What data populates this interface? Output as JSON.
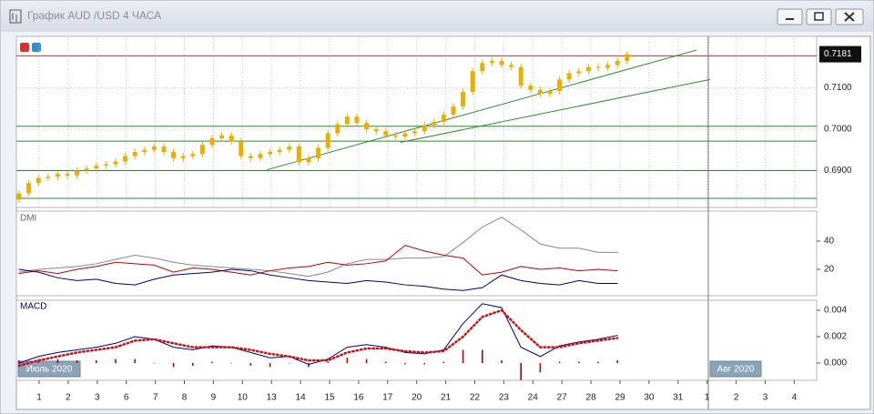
{
  "window": {
    "title": "График AUD /USD  4 ЧАСА"
  },
  "price_panel": {
    "type": "candlestick",
    "color": "#e8b000",
    "open": [
      0.683,
      0.6845,
      0.687,
      0.6882,
      0.6885,
      0.6892,
      0.6888,
      0.69,
      0.6905,
      0.6912,
      0.6915,
      0.6922,
      0.6935,
      0.6945,
      0.695,
      0.6958,
      0.6945,
      0.693,
      0.6935,
      0.694,
      0.6962,
      0.6978,
      0.6985,
      0.697,
      0.6935,
      0.693,
      0.694,
      0.6945,
      0.695,
      0.6958,
      0.692,
      0.693,
      0.6955,
      0.699,
      0.7012,
      0.703,
      0.7015,
      0.7,
      0.6995,
      0.6985,
      0.6982,
      0.699,
      0.6995,
      0.701,
      0.7018,
      0.7035,
      0.7055,
      0.709,
      0.714,
      0.716,
      0.7165,
      0.7155,
      0.715,
      0.7105,
      0.7095,
      0.7085,
      0.7092,
      0.712,
      0.7135,
      0.714,
      0.715,
      0.7148,
      0.7155,
      0.7165
    ],
    "high": [
      0.6853,
      0.6878,
      0.689,
      0.6893,
      0.69,
      0.69,
      0.6908,
      0.6913,
      0.692,
      0.6923,
      0.693,
      0.6943,
      0.6953,
      0.6958,
      0.6966,
      0.6966,
      0.6953,
      0.6943,
      0.6948,
      0.697,
      0.6986,
      0.6993,
      0.6993,
      0.6978,
      0.6943,
      0.6948,
      0.6953,
      0.6958,
      0.6966,
      0.6966,
      0.6938,
      0.6963,
      0.6998,
      0.702,
      0.7038,
      0.7038,
      0.7023,
      0.7008,
      0.7003,
      0.6993,
      0.6998,
      0.7003,
      0.7018,
      0.7026,
      0.7043,
      0.7063,
      0.7098,
      0.7148,
      0.7168,
      0.7173,
      0.7173,
      0.7163,
      0.7158,
      0.7113,
      0.7103,
      0.71,
      0.7128,
      0.7143,
      0.7148,
      0.7158,
      0.7158,
      0.7163,
      0.7173,
      0.7189
    ],
    "low": [
      0.6822,
      0.6837,
      0.6862,
      0.6874,
      0.6877,
      0.688,
      0.688,
      0.6892,
      0.6897,
      0.6904,
      0.6907,
      0.6914,
      0.6927,
      0.6937,
      0.6942,
      0.6937,
      0.6922,
      0.6922,
      0.6927,
      0.6932,
      0.6954,
      0.697,
      0.6962,
      0.6927,
      0.6922,
      0.6922,
      0.6932,
      0.6937,
      0.6942,
      0.6912,
      0.6912,
      0.6922,
      0.6947,
      0.6982,
      0.7004,
      0.7007,
      0.6992,
      0.6987,
      0.6977,
      0.6974,
      0.6974,
      0.6982,
      0.6987,
      0.7002,
      0.701,
      0.7027,
      0.7047,
      0.7082,
      0.7132,
      0.7152,
      0.7147,
      0.7142,
      0.7097,
      0.7087,
      0.7077,
      0.7077,
      0.7084,
      0.7112,
      0.7127,
      0.7132,
      0.714,
      0.714,
      0.7147,
      0.7157
    ],
    "close": [
      0.6845,
      0.687,
      0.6882,
      0.6885,
      0.6892,
      0.6888,
      0.69,
      0.6905,
      0.6912,
      0.6915,
      0.6922,
      0.6935,
      0.6945,
      0.695,
      0.6958,
      0.6945,
      0.693,
      0.6935,
      0.694,
      0.6962,
      0.6978,
      0.6985,
      0.697,
      0.6935,
      0.693,
      0.694,
      0.6945,
      0.695,
      0.6958,
      0.692,
      0.693,
      0.6955,
      0.699,
      0.7012,
      0.703,
      0.7015,
      0.7,
      0.6995,
      0.6985,
      0.6982,
      0.699,
      0.6995,
      0.701,
      0.7018,
      0.7035,
      0.7055,
      0.709,
      0.714,
      0.716,
      0.7165,
      0.7155,
      0.715,
      0.7105,
      0.7095,
      0.7085,
      0.7092,
      0.712,
      0.7135,
      0.714,
      0.715,
      0.7148,
      0.7155,
      0.7165,
      0.7181
    ],
    "ylim": [
      0.6811,
      0.7224
    ],
    "yticks": [
      {
        "value": 0.69,
        "label": "0.6900"
      },
      {
        "value": 0.7,
        "label": "0.7000"
      },
      {
        "value": 0.71,
        "label": "0.7100"
      }
    ],
    "last_price": 0.7181,
    "levels": [
      {
        "value": 0.7177,
        "color": "#c0392b"
      },
      {
        "value": 0.7007,
        "color": "#2e8b2e"
      },
      {
        "value": 0.6971,
        "color": "#2e8b2e"
      },
      {
        "value": 0.69,
        "color": "#2e8b2e"
      },
      {
        "value": 0.6833,
        "color": "#2e8b2e"
      }
    ],
    "trendlines": [
      {
        "x": [
          25.7,
          70.2
        ],
        "y": [
          0.6902,
          0.7191
        ],
        "color": "#2e8b2e"
      },
      {
        "x": [
          39.5,
          71.6
        ],
        "y": [
          0.6968,
          0.712
        ],
        "color": "#2e8b2e"
      }
    ]
  },
  "dmi_panel": {
    "type": "line",
    "label": "DMI",
    "ylim": [
      1.3,
      61.3
    ],
    "yticks": [
      20,
      40
    ],
    "series": [
      {
        "color": "#888888",
        "values": [
          18,
          20,
          21,
          22,
          24,
          27,
          30,
          28,
          25,
          23,
          22,
          21,
          20,
          19,
          17,
          15,
          18,
          24,
          27,
          27,
          28,
          28,
          29,
          39,
          50,
          57,
          48,
          38,
          35,
          35,
          32,
          32
        ]
      },
      {
        "color": "#c00000",
        "values": [
          17,
          19,
          17,
          20,
          22,
          25,
          24,
          23,
          18,
          21,
          20,
          18,
          16,
          19,
          21,
          22,
          25,
          23,
          24,
          26,
          37,
          33,
          30,
          28,
          16,
          18,
          22,
          20,
          21,
          19,
          20,
          19
        ]
      },
      {
        "color": "#00007a",
        "values": [
          20,
          18,
          14,
          12,
          13,
          10,
          9,
          13,
          16,
          17,
          18,
          20,
          19,
          16,
          14,
          12,
          11,
          10,
          12,
          11,
          9,
          8,
          6,
          5,
          7,
          16,
          12,
          10,
          9,
          12,
          10,
          10
        ]
      }
    ]
  },
  "macd_panel": {
    "type": "line",
    "label": "MACD",
    "ylim": [
      -0.00131,
      0.00476
    ],
    "yticks": [
      {
        "value": 0,
        "label": "0.000"
      },
      0.002,
      0.004
    ],
    "series": [
      {
        "color": "#00007a",
        "values": [
          0.0,
          0.0005,
          0.0008,
          0.001,
          0.0012,
          0.0015,
          0.002,
          0.0018,
          0.0012,
          0.001,
          0.0013,
          0.0012,
          0.0008,
          0.0004,
          0.0005,
          -0.0001,
          0.0003,
          0.0012,
          0.0014,
          0.0012,
          0.0008,
          0.0007,
          0.001,
          0.003,
          0.0045,
          0.0042,
          0.0012,
          0.0005,
          0.0013,
          0.0016,
          0.0018,
          0.0021
        ]
      },
      {
        "color": "#d01010",
        "dotted": true,
        "values": [
          -0.0002,
          0.0002,
          0.0005,
          0.0008,
          0.001,
          0.0012,
          0.0017,
          0.0018,
          0.0015,
          0.0012,
          0.0012,
          0.0012,
          0.001,
          0.0007,
          0.0005,
          0.0002,
          0.0002,
          0.0008,
          0.0011,
          0.0011,
          0.0009,
          0.0008,
          0.0009,
          0.002,
          0.0035,
          0.004,
          0.0025,
          0.0012,
          0.0012,
          0.0015,
          0.0017,
          0.0019
        ]
      }
    ],
    "histogram": {
      "color": "#c00000",
      "values": [
        0.0002,
        0.0003,
        0.0003,
        0.0002,
        0.0002,
        0.0003,
        0.0003,
        0.0,
        -0.0003,
        -0.0002,
        0.0001,
        0.0,
        -0.0002,
        -0.0003,
        0.0,
        -0.0003,
        0.0001,
        0.0004,
        0.0003,
        0.0001,
        -0.0001,
        -0.0001,
        0.0001,
        0.001,
        0.001,
        0.0002,
        -0.0013,
        -0.0007,
        0.0001,
        0.0001,
        0.0001,
        0.0002
      ]
    }
  },
  "x_axis": {
    "labels": [
      "1",
      "2",
      "3",
      "6",
      "7",
      "8",
      "9",
      "10",
      "13",
      "14",
      "15",
      "16",
      "17",
      "20",
      "21",
      "22",
      "23",
      "24",
      "27",
      "28",
      "29",
      "30",
      "31",
      "1",
      "2",
      "3",
      "4"
    ],
    "months": [
      "Июль 2020",
      "Авг 2020"
    ]
  }
}
